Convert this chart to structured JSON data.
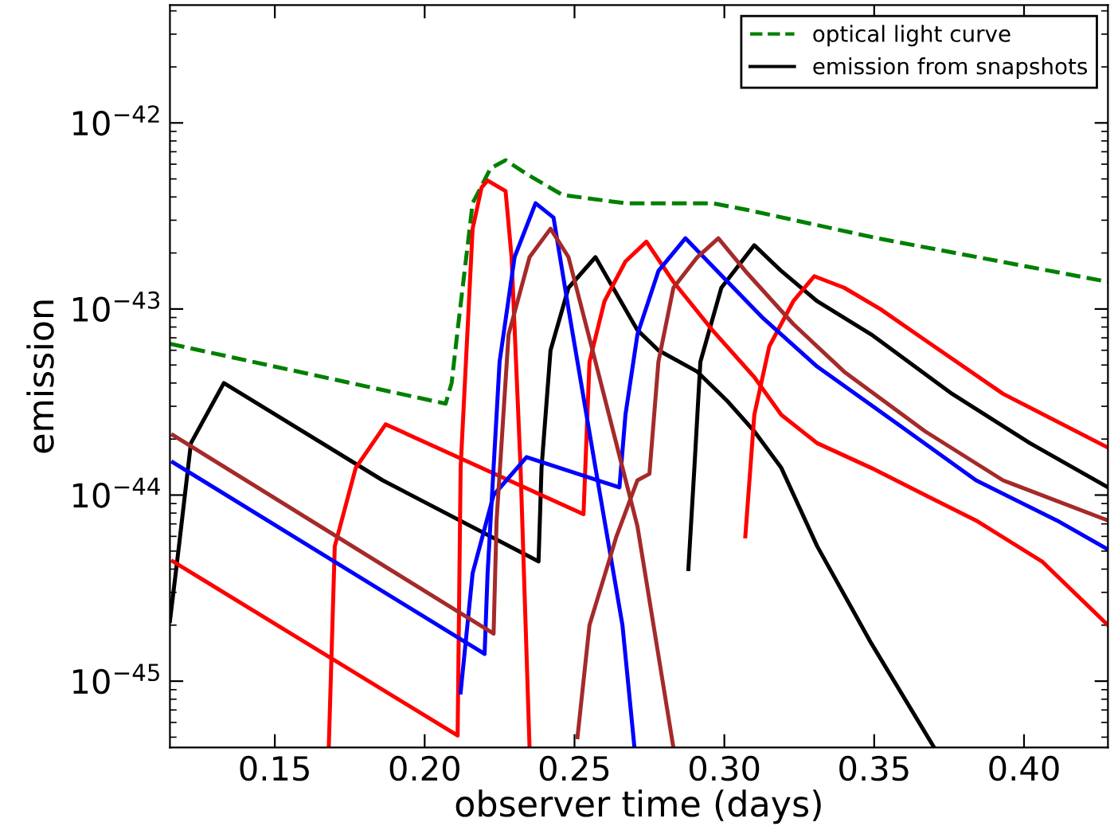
{
  "chart_data": {
    "type": "line",
    "xlabel": "observer time (days)",
    "ylabel": "emission",
    "xlim": [
      0.115,
      0.428
    ],
    "ylim": [
      4.4e-46,
      4.3e-42
    ],
    "log": "y",
    "grid": false,
    "legend": "top right",
    "xticks": [
      0.15,
      {
        "value": 0.2,
        "label": "0.20"
      },
      0.25,
      {
        "value": 0.3,
        "label": "0.30"
      },
      0.35,
      {
        "value": 0.4,
        "label": "0.40"
      }
    ],
    "yticks": [
      {
        "value": 1e-45,
        "label": "10$^{−45}$"
      },
      {
        "value": 1e-44,
        "label": "10$^{−44}$"
      },
      {
        "value": 1e-43,
        "label": "10$^{−43}$"
      },
      {
        "value": 1e-42,
        "label": "10$^{−42}$"
      }
    ],
    "series": [
      {
        "name": "optical light curve",
        "color": "#008000",
        "line_style": "dashed",
        "x": [
          0.115,
          0.207,
          0.209,
          0.211,
          0.216,
          0.222,
          0.227,
          0.235,
          0.246,
          0.267,
          0.296,
          0.308,
          0.351,
          0.428
        ],
        "values": [
          6.5e-44,
          3.1e-44,
          4e-44,
          7.7e-44,
          3.7e-43,
          5.7e-43,
          6.3e-43,
          5.2e-43,
          4.1e-43,
          3.7e-43,
          3.7e-43,
          3.4e-43,
          2.4e-43,
          1.4e-43
        ]
      },
      {
        "name": "emission from snapshots",
        "color": "#000000",
        "line_style": "solid",
        "x": [
          0.115,
          0.118,
          0.122,
          0.133,
          0.186,
          0.238,
          0.239,
          0.242,
          0.248,
          0.257,
          0.271,
          0.278,
          0.291,
          0.301,
          0.31,
          0.319,
          0.331,
          0.349,
          0.37
        ],
        "values": [
          2.1e-45,
          5.3e-45,
          1.9e-44,
          4e-44,
          1.2e-44,
          4.4e-45,
          1.4e-44,
          6e-44,
          1.3e-43,
          1.9e-43,
          7.7e-44,
          6e-44,
          4.6e-44,
          3.2e-44,
          2.2e-44,
          1.4e-44,
          5.3e-45,
          1.6e-45,
          4.4e-46
        ]
      },
      {
        "color": "#000000",
        "line_style": "solid",
        "x": [
          0.288,
          0.29,
          0.292,
          0.299,
          0.31,
          0.319,
          0.331,
          0.349,
          0.376,
          0.402,
          0.428
        ],
        "values": [
          4e-45,
          1.4e-44,
          5.2e-44,
          1.3e-43,
          2.2e-43,
          1.6e-43,
          1.1e-43,
          7.3e-44,
          3.5e-44,
          1.9e-44,
          1.1e-44
        ]
      },
      {
        "color": "#ff0000",
        "line_style": "solid",
        "x": [
          0.116,
          0.211,
          0.212,
          0.216,
          0.219,
          0.221,
          0.227,
          0.229,
          0.232,
          0.235
        ],
        "values": [
          4.4e-45,
          5.1e-46,
          1.4e-44,
          2.7e-43,
          4.5e-43,
          4.9e-43,
          4.3e-43,
          1.9e-43,
          1.4e-44,
          4.4e-46
        ]
      },
      {
        "color": "#ff0000",
        "line_style": "solid",
        "x": [
          0.168,
          0.17,
          0.177,
          0.187,
          0.253,
          0.255,
          0.26,
          0.267,
          0.274,
          0.283,
          0.296,
          0.31,
          0.319,
          0.331,
          0.349,
          0.367,
          0.384,
          0.406,
          0.428
        ],
        "values": [
          4.4e-46,
          5.3e-45,
          1.4e-44,
          2.4e-44,
          7.9e-45,
          5.2e-44,
          1.1e-43,
          1.8e-43,
          2.3e-43,
          1.4e-43,
          7.7e-44,
          4.3e-44,
          2.7e-44,
          1.9e-44,
          1.4e-44,
          1e-44,
          7.3e-45,
          4.4e-45,
          2e-45
        ]
      },
      {
        "color": "#ff0000",
        "line_style": "solid",
        "x": [
          0.307,
          0.31,
          0.315,
          0.323,
          0.33,
          0.34,
          0.352,
          0.367,
          0.393,
          0.428
        ],
        "values": [
          6e-45,
          2.7e-44,
          6.3e-44,
          1.1e-43,
          1.5e-43,
          1.3e-43,
          1e-43,
          6.8e-44,
          3.5e-44,
          1.8e-44
        ]
      },
      {
        "color": "#0000ff",
        "line_style": "solid",
        "x": [
          0.116,
          0.22,
          0.221,
          0.225,
          0.23,
          0.237,
          0.243,
          0.248,
          0.257,
          0.266,
          0.27
        ],
        "values": [
          1.5e-44,
          1.4e-45,
          3.8e-45,
          5.2e-44,
          1.9e-43,
          3.7e-43,
          3.1e-43,
          1e-43,
          1.4e-44,
          2e-45,
          4.4e-46
        ]
      },
      {
        "color": "#0000ff",
        "line_style": "solid",
        "x": [
          0.212,
          0.216,
          0.223,
          0.234,
          0.265,
          0.267,
          0.271,
          0.278,
          0.287,
          0.296,
          0.313,
          0.331,
          0.358,
          0.384,
          0.411,
          0.428
        ],
        "values": [
          8.7e-46,
          3.8e-45,
          1e-44,
          1.6e-44,
          1.1e-44,
          2.7e-44,
          7.3e-44,
          1.6e-43,
          2.4e-43,
          1.7e-43,
          8.9e-44,
          4.9e-44,
          2.4e-44,
          1.2e-44,
          7.3e-45,
          5.1e-45
        ]
      },
      {
        "color": "#a52a2a",
        "line_style": "solid",
        "x": [
          0.116,
          0.223,
          0.224,
          0.228,
          0.235,
          0.242,
          0.248,
          0.257,
          0.271,
          0.283
        ],
        "values": [
          2.1e-44,
          1.8e-45,
          7.3e-45,
          7.3e-44,
          1.9e-43,
          2.7e-43,
          1.9e-43,
          5.2e-44,
          6.8e-45,
          4.4e-46
        ]
      },
      {
        "color": "#a52a2a",
        "line_style": "solid",
        "x": [
          0.251,
          0.255,
          0.264,
          0.271,
          0.275,
          0.278,
          0.283,
          0.291,
          0.298,
          0.307,
          0.323,
          0.34,
          0.367,
          0.393,
          0.428
        ],
        "values": [
          5e-46,
          2e-45,
          6e-45,
          1.2e-44,
          1.3e-44,
          5.2e-44,
          1.3e-43,
          1.9e-43,
          2.4e-43,
          1.6e-43,
          8.3e-44,
          4.6e-44,
          2.2e-44,
          1.2e-44,
          7.3e-45
        ]
      }
    ]
  }
}
